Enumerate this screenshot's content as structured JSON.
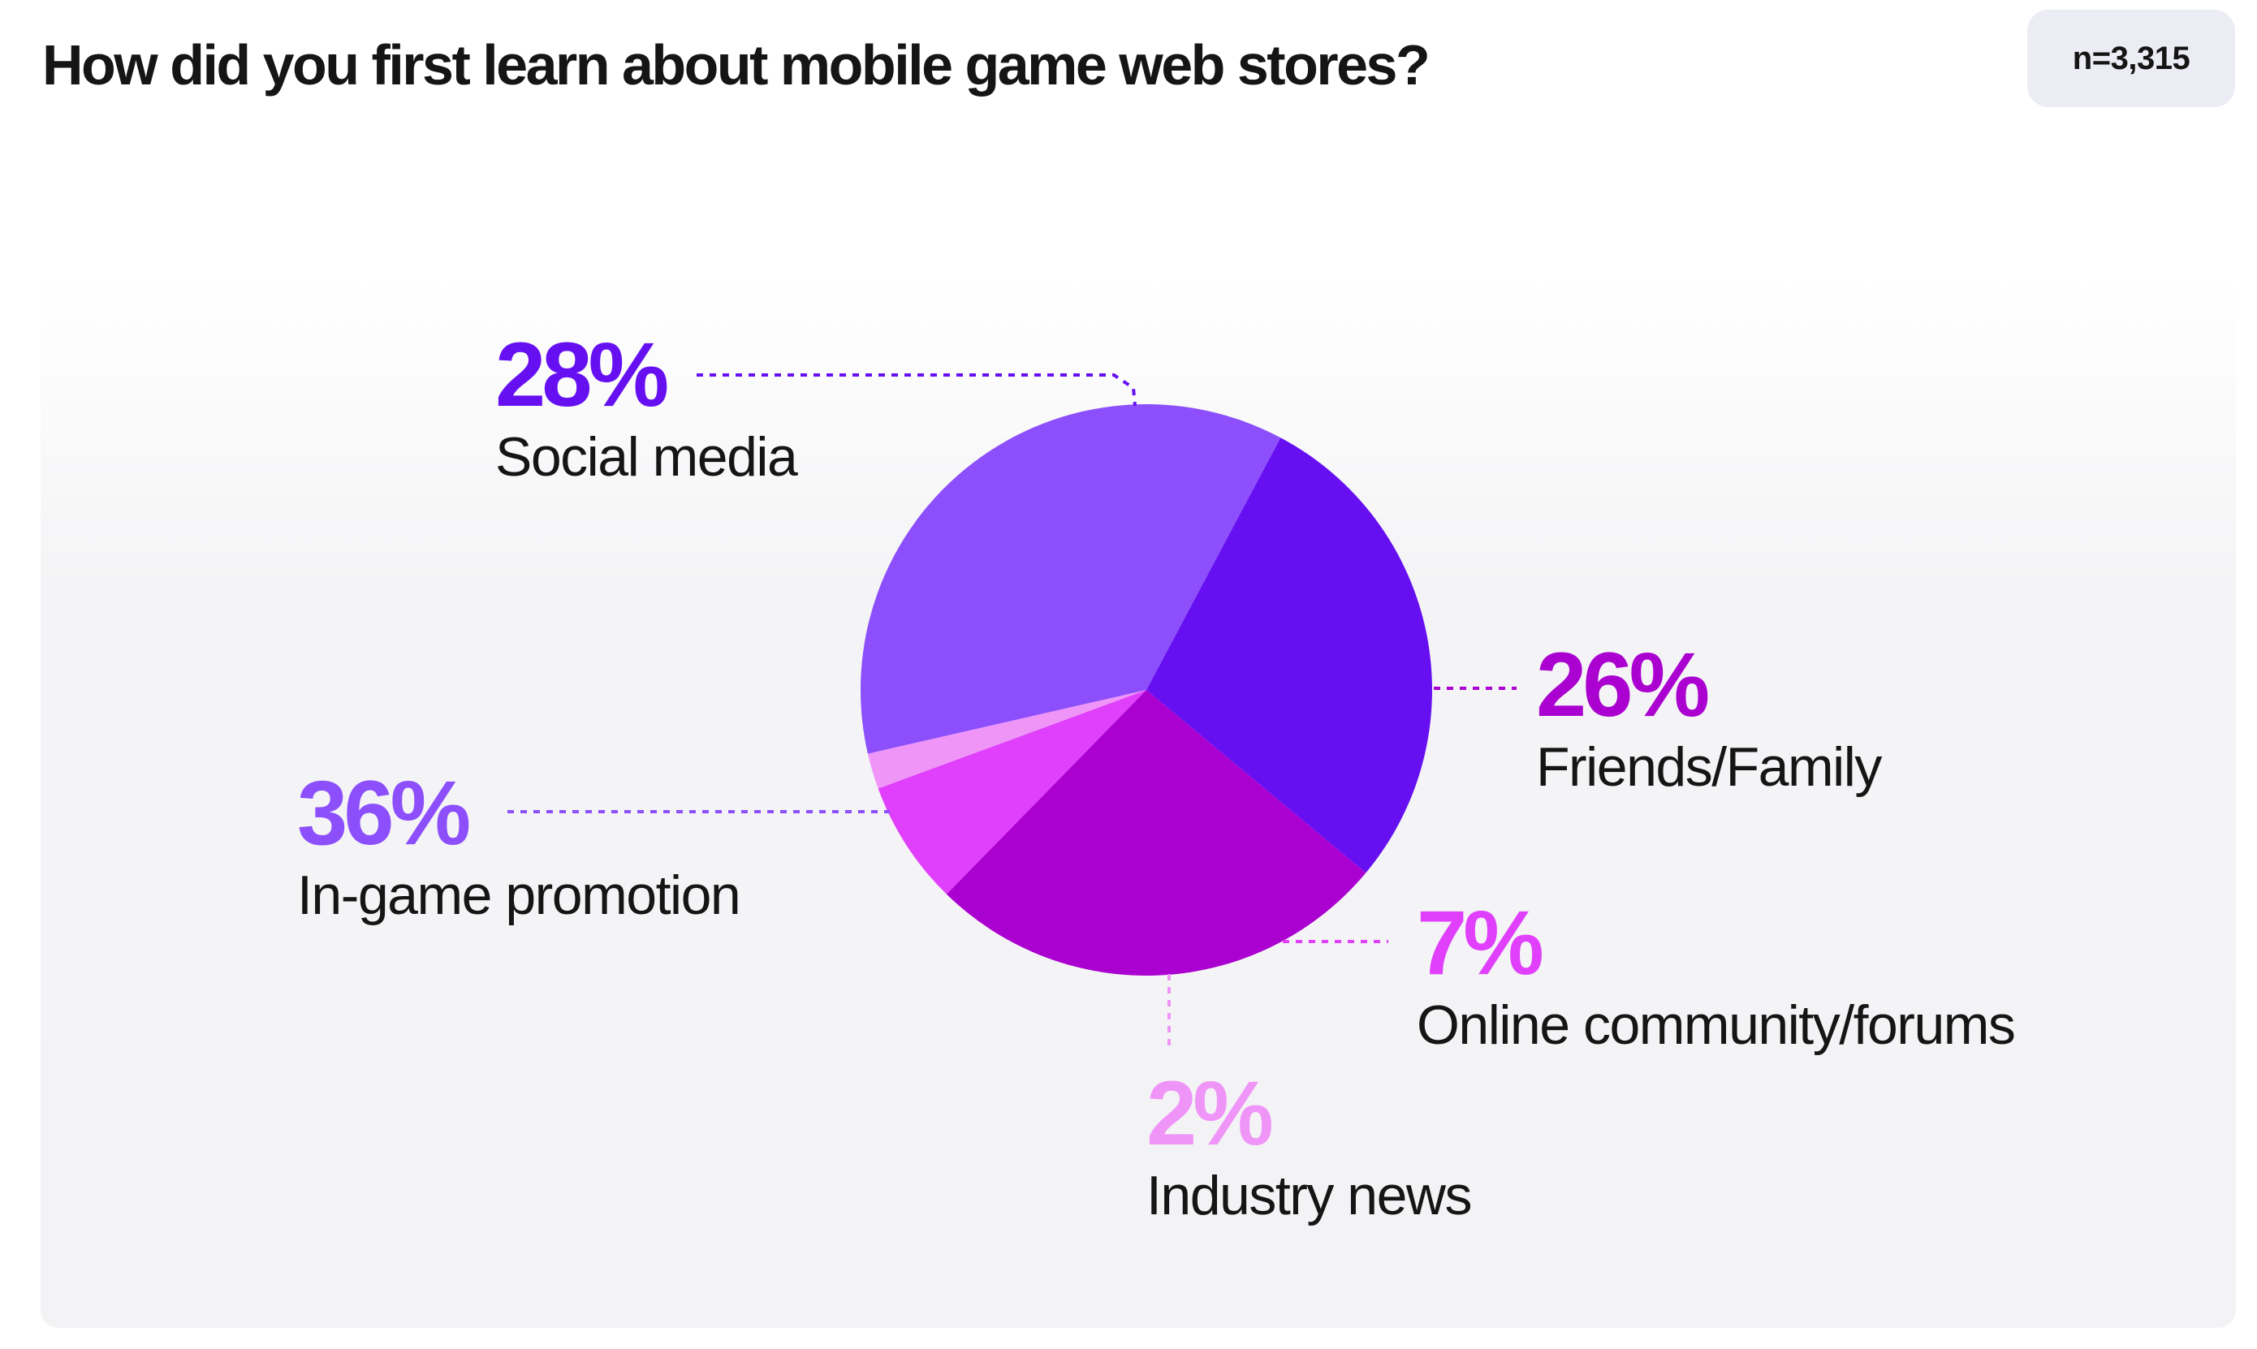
{
  "title": "How did you first learn about mobile game web stores?",
  "sample_size": "n=3,315",
  "chart_data": {
    "type": "pie",
    "title": "How did you first learn about mobile game web stores?",
    "slices": [
      {
        "label": "Social media",
        "value": 28,
        "value_label": "28%",
        "color": "#6610f2"
      },
      {
        "label": "Friends/Family",
        "value": 26,
        "value_label": "26%",
        "color": "#aa00d0"
      },
      {
        "label": "Online community/forums",
        "value": 7,
        "value_label": "7%",
        "color": "#e040fb"
      },
      {
        "label": "Industry news",
        "value": 2,
        "value_label": "2%",
        "color": "#f095f8"
      },
      {
        "label": "In-game promotion",
        "value": 36,
        "value_label": "36%",
        "color": "#8c4ffb"
      }
    ]
  }
}
